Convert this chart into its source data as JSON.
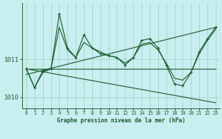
{
  "title": "Graphe pression niveau de la mer (hPa)",
  "background_color": "#c8eef0",
  "grid_color": "#99ccbb",
  "line_color": "#1a5c28",
  "xlim": [
    -0.5,
    23.5
  ],
  "ylim": [
    1009.7,
    1012.5
  ],
  "yticks": [
    1010,
    1011
  ],
  "xticks": [
    0,
    1,
    2,
    3,
    4,
    5,
    6,
    7,
    8,
    9,
    10,
    11,
    12,
    13,
    14,
    15,
    16,
    17,
    18,
    19,
    20,
    21,
    22,
    23
  ],
  "zigzag": [
    1010.75,
    1010.25,
    1010.7,
    1010.75,
    1012.2,
    1011.3,
    1011.05,
    1011.65,
    1011.3,
    1011.15,
    1011.1,
    1011.05,
    1010.85,
    1011.05,
    1011.5,
    1011.55,
    1011.3,
    1010.85,
    1010.35,
    1010.3,
    1010.65,
    1011.2,
    1011.55,
    1011.85
  ],
  "smooth": [
    1010.75,
    1010.25,
    1010.65,
    1010.75,
    1011.85,
    1011.25,
    1011.05,
    1011.45,
    1011.3,
    1011.2,
    1011.1,
    1011.05,
    1010.9,
    1011.05,
    1011.4,
    1011.45,
    1011.25,
    1010.9,
    1010.5,
    1010.45,
    1010.65,
    1011.15,
    1011.5,
    1011.8
  ],
  "flat_line": [
    [
      0,
      1010.75
    ],
    [
      23,
      1010.75
    ]
  ],
  "down_line": [
    [
      0,
      1010.75
    ],
    [
      23,
      1009.85
    ]
  ],
  "up_line": [
    [
      0,
      1010.6
    ],
    [
      23,
      1011.85
    ]
  ]
}
